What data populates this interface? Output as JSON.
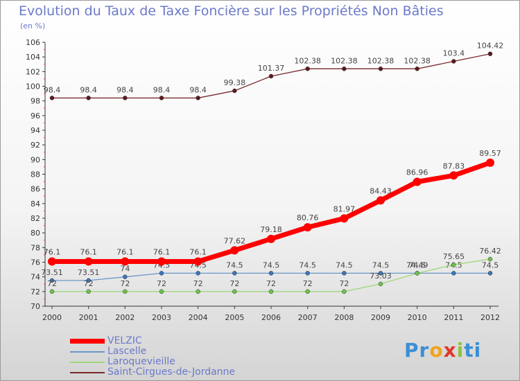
{
  "chart_data": {
    "type": "line",
    "title": "Evolution du Taux de Taxe Foncière sur les Propriétés Non Bâties",
    "subtitle": "(en %)",
    "xlabel": "",
    "ylabel": "",
    "ylim": [
      70,
      106
    ],
    "ytick_step": 2,
    "grid": false,
    "legend_position": "bottom-left",
    "categories": [
      "2000",
      "2001",
      "2002",
      "2003",
      "2004",
      "2005",
      "2006",
      "2007",
      "2008",
      "2009",
      "2010",
      "2011",
      "2012"
    ],
    "y_ticks": [
      "70",
      "72",
      "74",
      "76",
      "78",
      "80",
      "82",
      "84",
      "86",
      "88",
      "90",
      "92",
      "94",
      "96",
      "98",
      "100",
      "102",
      "104",
      "106"
    ],
    "series": [
      {
        "name": "Saint-Cirgues-de-Jordanne",
        "color": "#7a2a2e",
        "point_color": "#5c1a1e",
        "values": [
          98.4,
          98.4,
          98.4,
          98.4,
          98.4,
          99.38,
          101.37,
          102.38,
          102.38,
          102.38,
          102.38,
          103.4,
          104.42
        ],
        "labels": [
          "98.4",
          "98.4",
          "98.4",
          "98.4",
          "98.4",
          "99.38",
          "101.37",
          "102.38",
          "102.38",
          "102.38",
          "102.38",
          "103.4",
          "104.42"
        ]
      },
      {
        "name": "Lascelle",
        "color": "#6a96c8",
        "point_color": "#3d74b8",
        "values": [
          73.51,
          73.51,
          74,
          74.5,
          74.5,
          74.5,
          74.5,
          74.5,
          74.5,
          74.5,
          74.5,
          74.5,
          74.5
        ],
        "labels": [
          "73.51",
          "73.51",
          "74",
          "74.5",
          "74.5",
          "74.5",
          "74.5",
          "74.5",
          "74.5",
          "74.5",
          "74.5",
          "74.5",
          "74.5"
        ]
      },
      {
        "name": "Laroquevieille",
        "color": "#9ed87a",
        "point_color": "#6cc44a",
        "values": [
          72,
          72,
          72,
          72,
          72,
          72,
          72,
          72,
          72,
          73.03,
          74.49,
          75.65,
          76.42
        ],
        "labels": [
          "72",
          "72",
          "72",
          "72",
          "72",
          "72",
          "72",
          "72",
          "72",
          "73.03",
          "74.49",
          "75.65",
          "76.42"
        ]
      },
      {
        "name": "VELZIC",
        "color": "#ff0000",
        "point_color": "#ff0000",
        "values": [
          76.1,
          76.1,
          76.1,
          76.1,
          76.1,
          77.62,
          79.18,
          80.76,
          81.97,
          84.43,
          86.96,
          87.83,
          89.57
        ],
        "labels": [
          "76.1",
          "76.1",
          "76.1",
          "76.1",
          "76.1",
          "77.62",
          "79.18",
          "80.76",
          "81.97",
          "84.43",
          "86.96",
          "87.83",
          "89.57"
        ]
      }
    ],
    "legend": [
      "VELZIC",
      "Lascelle",
      "Laroquevieille",
      "Saint-Cirgues-de-Jordanne"
    ]
  },
  "logo": {
    "letters": [
      "P",
      "r",
      "o",
      "x",
      "i",
      "t",
      "i"
    ],
    "colors": [
      "#3b8fd6",
      "#3b8fd6",
      "#f2a21c",
      "#e2362c",
      "#8cc43c",
      "#3b8fd6",
      "#3b8fd6"
    ]
  }
}
